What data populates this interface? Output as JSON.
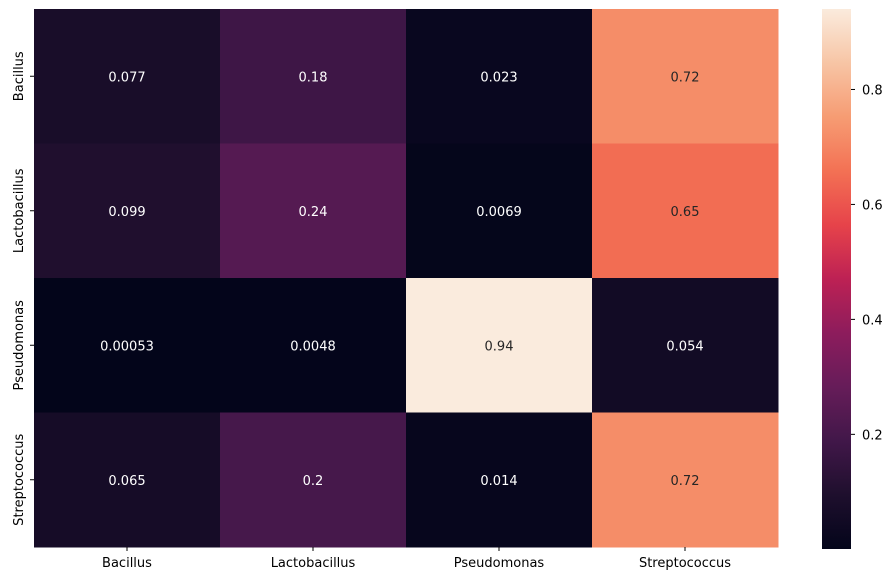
{
  "chart_data": {
    "type": "heatmap",
    "rows": [
      "Bacillus",
      "Lactobacillus",
      "Pseudomonas",
      "Streptococcus"
    ],
    "columns": [
      "Bacillus",
      "Lactobacillus",
      "Pseudomonas",
      "Streptococcus"
    ],
    "values": [
      [
        0.077,
        0.18,
        0.023,
        0.72
      ],
      [
        0.099,
        0.24,
        0.0069,
        0.65
      ],
      [
        0.00053,
        0.0048,
        0.94,
        0.054
      ],
      [
        0.065,
        0.2,
        0.014,
        0.72
      ]
    ],
    "value_labels": [
      [
        "0.077",
        "0.18",
        "0.023",
        "0.72"
      ],
      [
        "0.099",
        "0.24",
        "0.0069",
        "0.65"
      ],
      [
        "0.00053",
        "0.0048",
        "0.94",
        "0.054"
      ],
      [
        "0.065",
        "0.2",
        "0.014",
        "0.72"
      ]
    ],
    "colormap": "rocket",
    "vmin": 0.00053,
    "vmax": 0.94,
    "colorbar": {
      "position": "right",
      "ticks": [
        0.2,
        0.4,
        0.6,
        0.8
      ],
      "tick_labels": [
        "0.2",
        "0.4",
        "0.6",
        "0.8"
      ]
    },
    "title": "",
    "xlabel": "",
    "ylabel": ""
  }
}
